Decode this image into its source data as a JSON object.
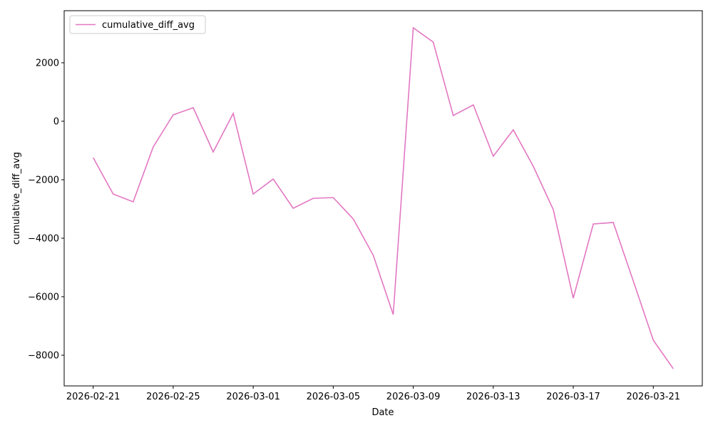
{
  "chart_data": {
    "type": "line",
    "xlabel": "Date",
    "ylabel": "cumulative_diff_avg",
    "x": [
      "2026-02-21",
      "2026-02-22",
      "2026-02-23",
      "2026-02-24",
      "2026-02-25",
      "2026-02-26",
      "2026-02-27",
      "2026-02-28",
      "2026-03-01",
      "2026-03-02",
      "2026-03-03",
      "2026-03-04",
      "2026-03-05",
      "2026-03-06",
      "2026-03-07",
      "2026-03-08",
      "2026-03-09",
      "2026-03-10",
      "2026-03-11",
      "2026-03-12",
      "2026-03-13",
      "2026-03-14",
      "2026-03-15",
      "2026-03-16",
      "2026-03-17",
      "2026-03-18",
      "2026-03-19",
      "2026-03-20",
      "2026-03-21",
      "2026-03-22"
    ],
    "series": [
      {
        "name": "cumulative_diff_avg",
        "color": "#e377c2",
        "values": [
          -1244,
          -2488,
          -2756,
          -878,
          220,
          463,
          -1049,
          268,
          -2488,
          -1976,
          -2976,
          -2634,
          -2610,
          -3341,
          -4585,
          -6610,
          3195,
          2707,
          195,
          561,
          -1195,
          -293,
          -1537,
          -3024,
          -6049,
          -3512,
          -3463,
          -5463,
          -7488,
          -8463
        ]
      }
    ],
    "xlim": [
      "2026-02-19T13:12",
      "2026-03-23T10:48"
    ],
    "xticks": [
      "2026-02-21",
      "2026-02-25",
      "2026-03-01",
      "2026-03-05",
      "2026-03-09",
      "2026-03-13",
      "2026-03-17",
      "2026-03-21"
    ],
    "ylim": [
      -9050,
      3780
    ],
    "yticks": [
      {
        "value": -8000,
        "label": "−8000"
      },
      {
        "value": -6000,
        "label": "−6000"
      },
      {
        "value": -4000,
        "label": "−4000"
      },
      {
        "value": -2000,
        "label": "−2000"
      },
      0,
      2000
    ],
    "legend": "upper left"
  }
}
